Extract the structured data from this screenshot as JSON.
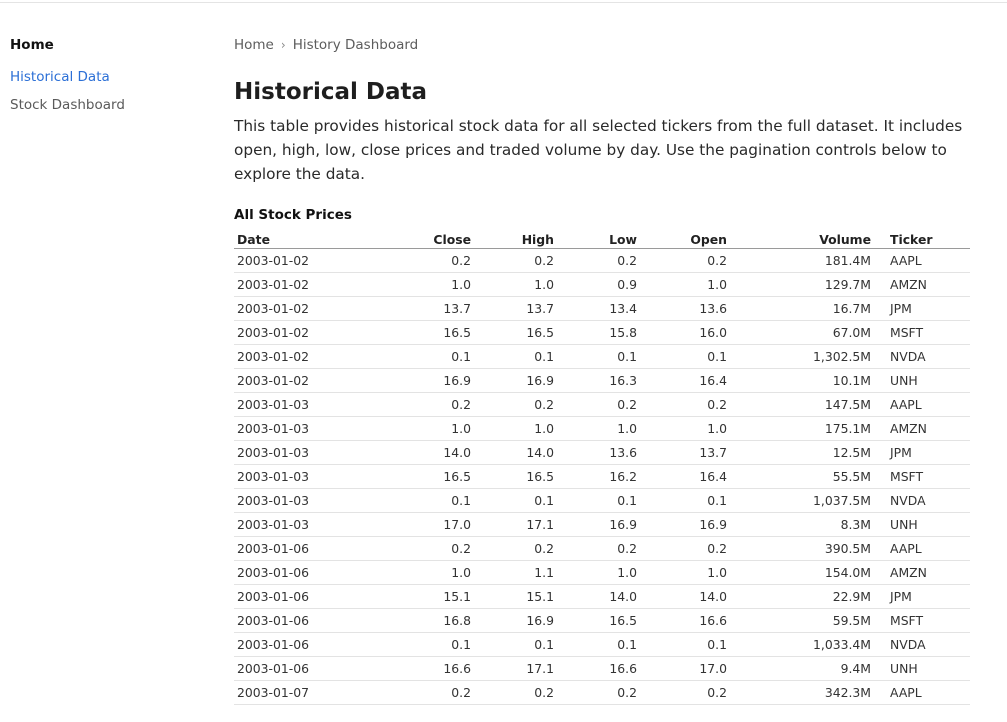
{
  "sidebar": {
    "home": "Home",
    "items": [
      {
        "label": "Historical Data",
        "active": true
      },
      {
        "label": "Stock Dashboard",
        "active": false
      }
    ]
  },
  "breadcrumb": {
    "home": "Home",
    "current": "History Dashboard"
  },
  "main": {
    "title": "Historical Data",
    "description": "This table provides historical stock data for all selected tickers from the full dataset. It includes open, high, low, close prices and traded volume by day. Use the pagination controls below to explore the data.",
    "table_title": "All Stock Prices"
  },
  "table": {
    "columns": [
      "Date",
      "Close",
      "High",
      "Low",
      "Open",
      "Volume",
      "Ticker"
    ],
    "rows": [
      [
        "2003-01-02",
        "0.2",
        "0.2",
        "0.2",
        "0.2",
        "181.4M",
        "AAPL"
      ],
      [
        "2003-01-02",
        "1.0",
        "1.0",
        "0.9",
        "1.0",
        "129.7M",
        "AMZN"
      ],
      [
        "2003-01-02",
        "13.7",
        "13.7",
        "13.4",
        "13.6",
        "16.7M",
        "JPM"
      ],
      [
        "2003-01-02",
        "16.5",
        "16.5",
        "15.8",
        "16.0",
        "67.0M",
        "MSFT"
      ],
      [
        "2003-01-02",
        "0.1",
        "0.1",
        "0.1",
        "0.1",
        "1,302.5M",
        "NVDA"
      ],
      [
        "2003-01-02",
        "16.9",
        "16.9",
        "16.3",
        "16.4",
        "10.1M",
        "UNH"
      ],
      [
        "2003-01-03",
        "0.2",
        "0.2",
        "0.2",
        "0.2",
        "147.5M",
        "AAPL"
      ],
      [
        "2003-01-03",
        "1.0",
        "1.0",
        "1.0",
        "1.0",
        "175.1M",
        "AMZN"
      ],
      [
        "2003-01-03",
        "14.0",
        "14.0",
        "13.6",
        "13.7",
        "12.5M",
        "JPM"
      ],
      [
        "2003-01-03",
        "16.5",
        "16.5",
        "16.2",
        "16.4",
        "55.5M",
        "MSFT"
      ],
      [
        "2003-01-03",
        "0.1",
        "0.1",
        "0.1",
        "0.1",
        "1,037.5M",
        "NVDA"
      ],
      [
        "2003-01-03",
        "17.0",
        "17.1",
        "16.9",
        "16.9",
        "8.3M",
        "UNH"
      ],
      [
        "2003-01-06",
        "0.2",
        "0.2",
        "0.2",
        "0.2",
        "390.5M",
        "AAPL"
      ],
      [
        "2003-01-06",
        "1.0",
        "1.1",
        "1.0",
        "1.0",
        "154.0M",
        "AMZN"
      ],
      [
        "2003-01-06",
        "15.1",
        "15.1",
        "14.0",
        "14.0",
        "22.9M",
        "JPM"
      ],
      [
        "2003-01-06",
        "16.8",
        "16.9",
        "16.5",
        "16.6",
        "59.5M",
        "MSFT"
      ],
      [
        "2003-01-06",
        "0.1",
        "0.1",
        "0.1",
        "0.1",
        "1,033.4M",
        "NVDA"
      ],
      [
        "2003-01-06",
        "16.6",
        "17.1",
        "16.6",
        "17.0",
        "9.4M",
        "UNH"
      ],
      [
        "2003-01-07",
        "0.2",
        "0.2",
        "0.2",
        "0.2",
        "342.3M",
        "AAPL"
      ]
    ]
  },
  "colors": {
    "active_link": "#2b6fd6",
    "muted_text": "#5d5d5d",
    "row_border": "#e3e3e3"
  }
}
